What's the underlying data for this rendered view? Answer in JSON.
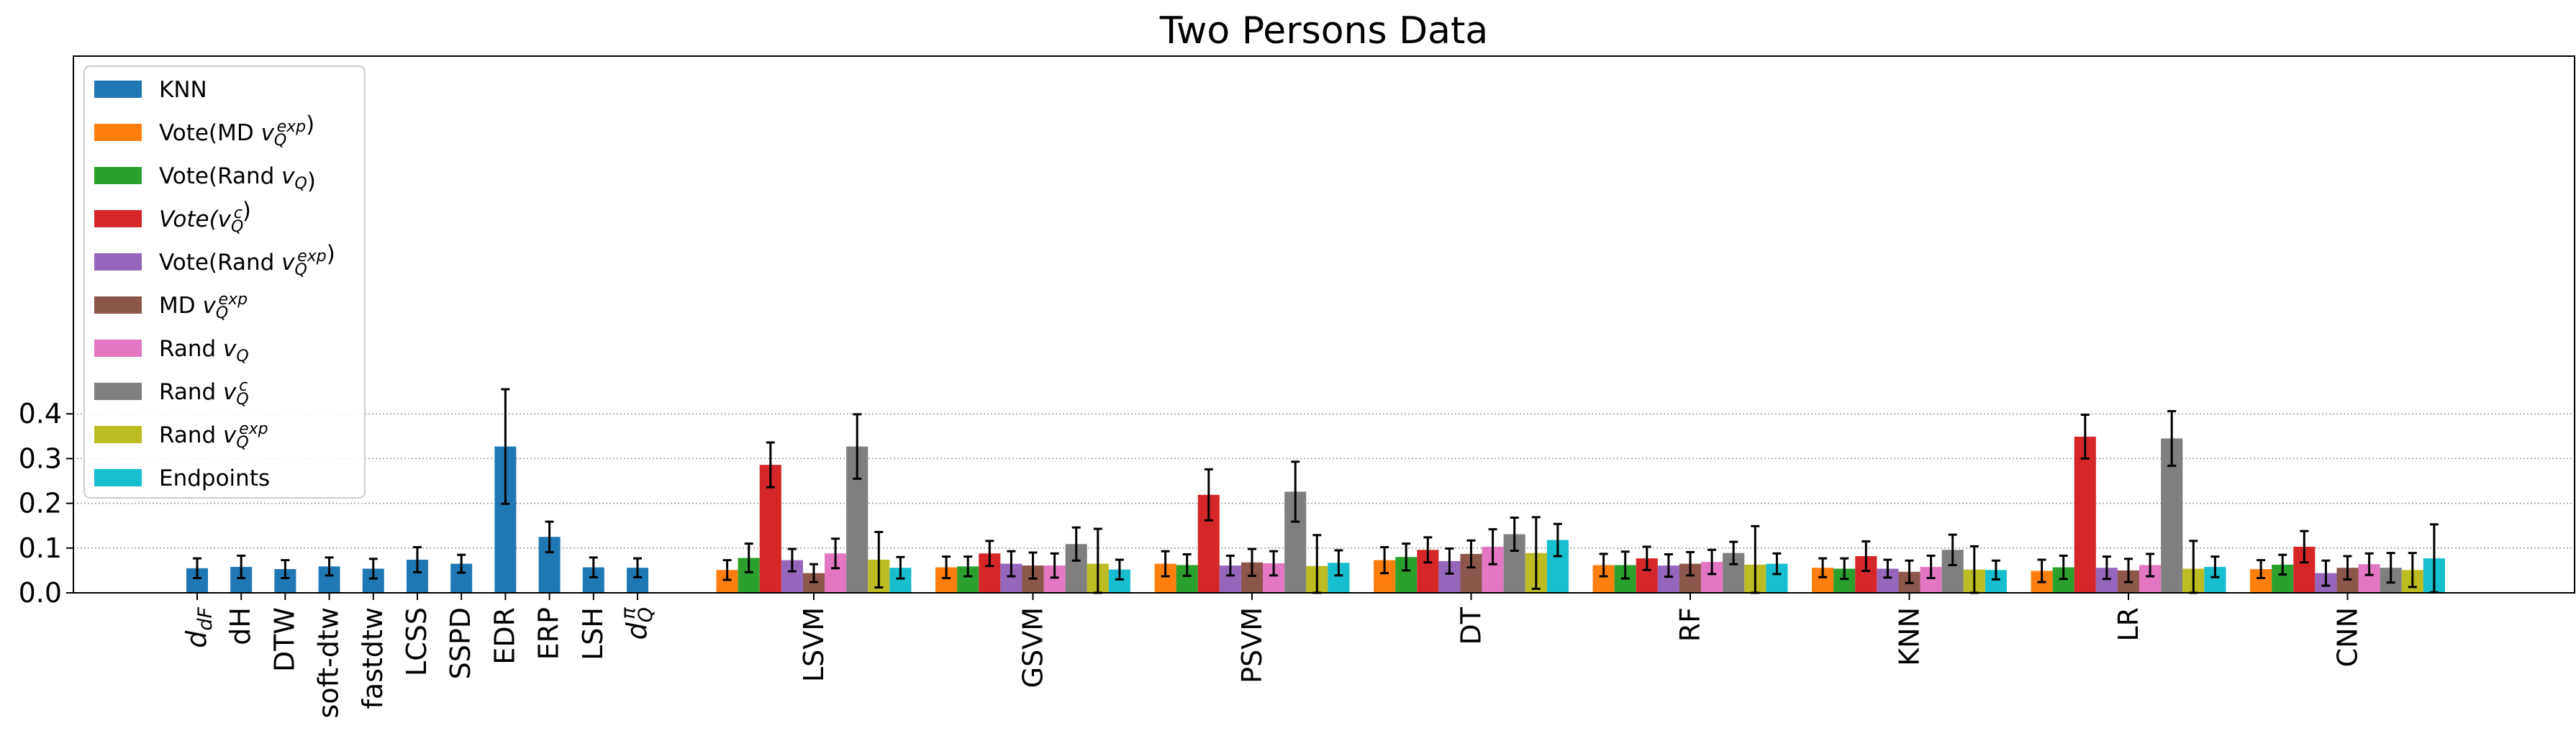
{
  "chart_data": {
    "type": "bar",
    "title": "Two Persons Data",
    "xlabel": "",
    "ylabel": "",
    "ylim": [
      0,
      0.48
    ],
    "yticks": [
      "0.0",
      "0.1",
      "0.2",
      "0.3",
      "0.4"
    ],
    "ytick_values": [
      0,
      0.1,
      0.2,
      0.3,
      0.4
    ],
    "grid": "y-axis dotted",
    "legend_position": "upper-left",
    "series": [
      {
        "key": "knn",
        "name": "KNN",
        "color": "#1f77b4"
      },
      {
        "key": "vote_md_exp",
        "name": "Vote(MD v_Q^exp)",
        "color": "#ff7f0e"
      },
      {
        "key": "vote_rand",
        "name": "Vote(Rand v_Q)",
        "color": "#2ca02c"
      },
      {
        "key": "vote_c",
        "name": "Vote(v_Q^c)",
        "color": "#d62728"
      },
      {
        "key": "vote_rand_exp",
        "name": "Vote(Rand v_Q^exp)",
        "color": "#9467bd"
      },
      {
        "key": "md_exp",
        "name": "MD v_Q^exp",
        "color": "#8c564b"
      },
      {
        "key": "rand",
        "name": "Rand v_Q",
        "color": "#e377c2"
      },
      {
        "key": "rand_c",
        "name": "Rand v_Q^c",
        "color": "#7f7f7f"
      },
      {
        "key": "rand_exp",
        "name": "Rand v_Q^exp",
        "color": "#bcbd22"
      },
      {
        "key": "endpoints",
        "name": "Endpoints",
        "color": "#17becf"
      }
    ],
    "single_bars": {
      "series": "KNN",
      "categories": [
        "d_dF",
        "dH",
        "DTW",
        "soft-dtw",
        "fastdtw",
        "LCSS",
        "SSPD",
        "EDR",
        "ERP",
        "LSH",
        "d_Q^π"
      ],
      "values": [
        0.055,
        0.058,
        0.053,
        0.059,
        0.054,
        0.074,
        0.065,
        0.327,
        0.125,
        0.057,
        0.056
      ],
      "errors": [
        0.022,
        0.025,
        0.02,
        0.02,
        0.022,
        0.028,
        0.02,
        0.128,
        0.034,
        0.022,
        0.021
      ]
    },
    "groups": [
      {
        "label": "LSVM",
        "values": [
          0.051,
          0.078,
          0.286,
          0.073,
          0.044,
          0.088,
          0.327,
          0.074,
          0.056
        ],
        "errors": [
          0.022,
          0.032,
          0.05,
          0.025,
          0.02,
          0.033,
          0.072,
          0.062,
          0.024
        ]
      },
      {
        "label": "GSVM",
        "values": [
          0.057,
          0.059,
          0.088,
          0.065,
          0.061,
          0.061,
          0.109,
          0.065,
          0.052
        ],
        "errors": [
          0.024,
          0.022,
          0.028,
          0.028,
          0.029,
          0.027,
          0.037,
          0.078,
          0.022
        ]
      },
      {
        "label": "PSVM",
        "values": [
          0.065,
          0.062,
          0.219,
          0.061,
          0.068,
          0.066,
          0.226,
          0.06,
          0.067
        ],
        "errors": [
          0.028,
          0.024,
          0.057,
          0.022,
          0.03,
          0.027,
          0.067,
          0.069,
          0.028
        ]
      },
      {
        "label": "DT",
        "values": [
          0.073,
          0.08,
          0.096,
          0.071,
          0.087,
          0.103,
          0.131,
          0.089,
          0.118
        ],
        "errors": [
          0.029,
          0.03,
          0.028,
          0.028,
          0.03,
          0.039,
          0.037,
          0.08,
          0.036
        ]
      },
      {
        "label": "RF",
        "values": [
          0.062,
          0.062,
          0.077,
          0.061,
          0.065,
          0.069,
          0.089,
          0.063,
          0.065
        ],
        "errors": [
          0.025,
          0.03,
          0.026,
          0.025,
          0.026,
          0.027,
          0.025,
          0.086,
          0.023
        ]
      },
      {
        "label": "KNN",
        "values": [
          0.056,
          0.054,
          0.082,
          0.054,
          0.047,
          0.058,
          0.096,
          0.052,
          0.051
        ],
        "errors": [
          0.021,
          0.023,
          0.033,
          0.02,
          0.025,
          0.025,
          0.034,
          0.052,
          0.021
        ]
      },
      {
        "label": "LR",
        "values": [
          0.049,
          0.057,
          0.349,
          0.056,
          0.05,
          0.062,
          0.345,
          0.054,
          0.058
        ],
        "errors": [
          0.025,
          0.026,
          0.049,
          0.025,
          0.026,
          0.025,
          0.061,
          0.062,
          0.023
        ]
      },
      {
        "label": "CNN",
        "values": [
          0.053,
          0.063,
          0.103,
          0.044,
          0.056,
          0.064,
          0.056,
          0.051,
          0.077
        ],
        "errors": [
          0.02,
          0.022,
          0.035,
          0.028,
          0.026,
          0.024,
          0.033,
          0.038,
          0.076
        ]
      }
    ],
    "group_series": [
      "Vote(MD v_Q^exp)",
      "Vote(Rand v_Q)",
      "Vote(v_Q^c)",
      "Vote(Rand v_Q^exp)",
      "MD v_Q^exp",
      "Rand v_Q",
      "Rand v_Q^c",
      "Rand v_Q^exp",
      "Endpoints"
    ]
  }
}
